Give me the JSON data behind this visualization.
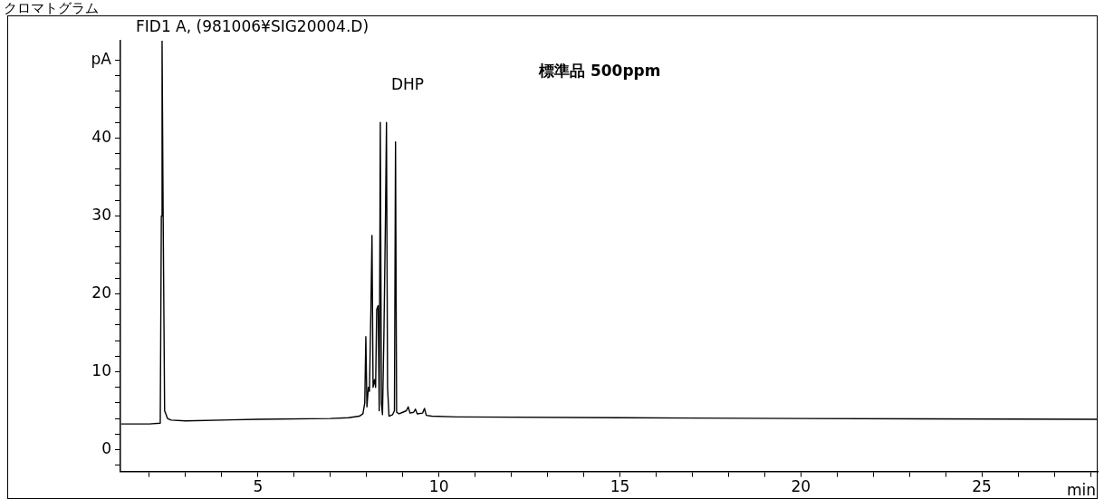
{
  "chart_data": {
    "type": "line",
    "title": "クロマトグラム",
    "subtitle": "FID1 A, (981006¥SIG20004.D)",
    "xlabel": "min",
    "annotations": [
      "DHP",
      "標準品 500ppm"
    ],
    "color": "#000000",
    "x": [
      1.22,
      2.0,
      2.3,
      2.33,
      2.35,
      2.38,
      2.42,
      2.5,
      2.6,
      3.0,
      5.0,
      7.0,
      7.5,
      7.8,
      7.9,
      7.95,
      7.98,
      8.01,
      8.05,
      8.08,
      8.12,
      8.15,
      8.18,
      8.22,
      8.25,
      8.28,
      8.32,
      8.35,
      8.38,
      8.41,
      8.44,
      8.48,
      8.52,
      8.55,
      8.58,
      8.62,
      8.72,
      8.77,
      8.8,
      8.83,
      8.9,
      9.0,
      9.1,
      9.15,
      9.2,
      9.3,
      9.35,
      9.4,
      9.55,
      9.6,
      9.65,
      9.8,
      10.5,
      15,
      20,
      28.2
    ],
    "values": [
      3.3,
      3.3,
      3.4,
      30,
      52.5,
      30,
      5,
      4,
      3.8,
      3.7,
      3.9,
      4.0,
      4.1,
      4.3,
      4.6,
      6,
      14.5,
      5.5,
      8,
      7.5,
      18,
      27.5,
      8,
      9,
      8,
      18,
      18.5,
      5,
      42,
      6,
      4.5,
      15,
      29,
      42,
      8,
      4.3,
      4.5,
      5,
      39.5,
      4.8,
      4.6,
      4.8,
      5.0,
      5.5,
      4.7,
      4.8,
      5.2,
      4.6,
      4.7,
      5.3,
      4.4,
      4.3,
      4.2,
      4.1,
      4.0,
      3.9
    ],
    "xlim": [
      1.2,
      28.2
    ],
    "ylim": [
      -2.8,
      52.5
    ],
    "xticks": [
      {
        "value": 2,
        "label": null
      },
      {
        "value": 3,
        "label": null
      },
      {
        "value": 4,
        "label": null
      },
      5,
      {
        "value": 6,
        "label": null
      },
      {
        "value": 7,
        "label": null
      },
      {
        "value": 8,
        "label": null
      },
      {
        "value": 9,
        "label": null
      },
      10,
      {
        "value": 11,
        "label": null
      },
      {
        "value": 12,
        "label": null
      },
      {
        "value": 13,
        "label": null
      },
      {
        "value": 14,
        "label": null
      },
      15,
      {
        "value": 16,
        "label": null
      },
      {
        "value": 17,
        "label": null
      },
      {
        "value": 18,
        "label": null
      },
      {
        "value": 19,
        "label": null
      },
      20,
      {
        "value": 21,
        "label": null
      },
      {
        "value": 22,
        "label": null
      },
      {
        "value": 23,
        "label": null
      },
      {
        "value": 24,
        "label": null
      },
      25,
      {
        "value": 26,
        "label": null
      },
      {
        "value": 27,
        "label": null
      },
      {
        "value": 28,
        "label": null
      }
    ],
    "yticks": [
      {
        "value": -2,
        "label": null
      },
      0,
      {
        "value": 2,
        "label": null
      },
      {
        "value": 4,
        "label": null
      },
      {
        "value": 6,
        "label": null
      },
      {
        "value": 8,
        "label": null
      },
      10,
      {
        "value": 12,
        "label": null
      },
      {
        "value": 14,
        "label": null
      },
      {
        "value": 16,
        "label": null
      },
      {
        "value": 18,
        "label": null
      },
      20,
      {
        "value": 22,
        "label": null
      },
      {
        "value": 24,
        "label": null
      },
      {
        "value": 26,
        "label": null
      },
      {
        "value": 28,
        "label": null
      },
      30,
      {
        "value": 32,
        "label": null
      },
      {
        "value": 34,
        "label": null
      },
      {
        "value": 36,
        "label": null
      },
      {
        "value": 38,
        "label": null
      },
      40,
      {
        "value": 42,
        "label": null
      },
      {
        "value": 44,
        "label": null
      },
      {
        "value": 46,
        "label": null
      },
      {
        "value": 48,
        "label": null
      },
      {
        "value": 50,
        "label": "pA"
      }
    ],
    "grid": false,
    "legend": false
  }
}
